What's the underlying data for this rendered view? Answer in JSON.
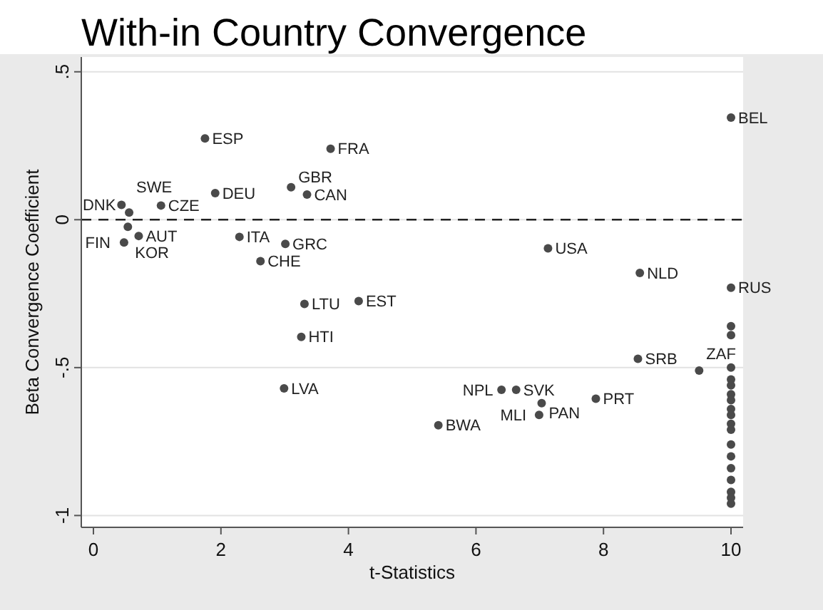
{
  "chart_data": {
    "type": "scatter",
    "title": "With-in Country Convergence",
    "xlabel": "t-Statistics",
    "ylabel": "Beta Convergence Coefficient",
    "xlim": [
      -0.19,
      10.19
    ],
    "ylim": [
      -1.04,
      0.55
    ],
    "xticks": [
      0,
      2,
      4,
      6,
      8,
      10
    ],
    "yticks": [
      {
        "value": -1,
        "label": "-1"
      },
      {
        "value": -0.5,
        "label": "-.5"
      },
      {
        "value": 0,
        "label": "0"
      },
      {
        "value": 0.5,
        "label": ".5"
      }
    ],
    "grid": "y",
    "marker": "circle",
    "ref_lines": [
      {
        "axis": "y",
        "value": 0,
        "line_style": "dashed",
        "color": "#222222"
      }
    ],
    "series": [
      {
        "color": "#4a4a4a",
        "x": [
          1.75,
          3.72,
          1.91,
          3.1,
          3.35,
          0.44,
          1.06,
          0.56,
          0.54,
          0.71,
          0.48,
          2.29,
          3.01,
          2.62,
          3.31,
          4.16,
          3.26,
          2.99,
          5.41,
          6.4,
          6.63,
          7.03,
          6.99,
          7.88,
          7.13,
          8.57,
          8.54,
          9.5,
          10,
          10,
          10,
          10,
          10,
          10,
          10,
          10,
          10,
          10,
          10,
          10,
          10,
          10,
          10,
          10,
          10,
          10,
          10,
          10
        ],
        "values": [
          0.275,
          0.24,
          0.09,
          0.11,
          0.085,
          0.05,
          0.048,
          0.024,
          -0.024,
          -0.055,
          -0.077,
          -0.058,
          -0.082,
          -0.14,
          -0.285,
          -0.275,
          -0.396,
          -0.57,
          -0.695,
          -0.575,
          -0.575,
          -0.62,
          -0.66,
          -0.605,
          -0.097,
          -0.18,
          -0.47,
          -0.51,
          0.345,
          -0.23,
          -0.36,
          -0.39,
          -0.5,
          -0.54,
          -0.56,
          -0.59,
          -0.61,
          -0.64,
          -0.66,
          -0.69,
          -0.71,
          -0.76,
          -0.8,
          -0.84,
          -0.88,
          -0.92,
          -0.94,
          -0.96
        ],
        "value_labels": [
          "ESP",
          "FRA",
          "DEU",
          "GBR",
          "CAN",
          "DNK",
          "CZE",
          "SWE",
          "KOR",
          "AUT",
          "FIN",
          "ITA",
          "GRC",
          "CHE",
          "LTU",
          "EST",
          "HTI",
          "LVA",
          "BWA",
          "NPL",
          "SVK",
          "PAN",
          "MLI",
          "PRT",
          "USA",
          "NLD",
          "SRB",
          "ZAF",
          "BEL",
          "RUS",
          null,
          null,
          null,
          null,
          null,
          null,
          null,
          null,
          null,
          null,
          null,
          null,
          null,
          null,
          null,
          null,
          null,
          null
        ]
      }
    ]
  }
}
